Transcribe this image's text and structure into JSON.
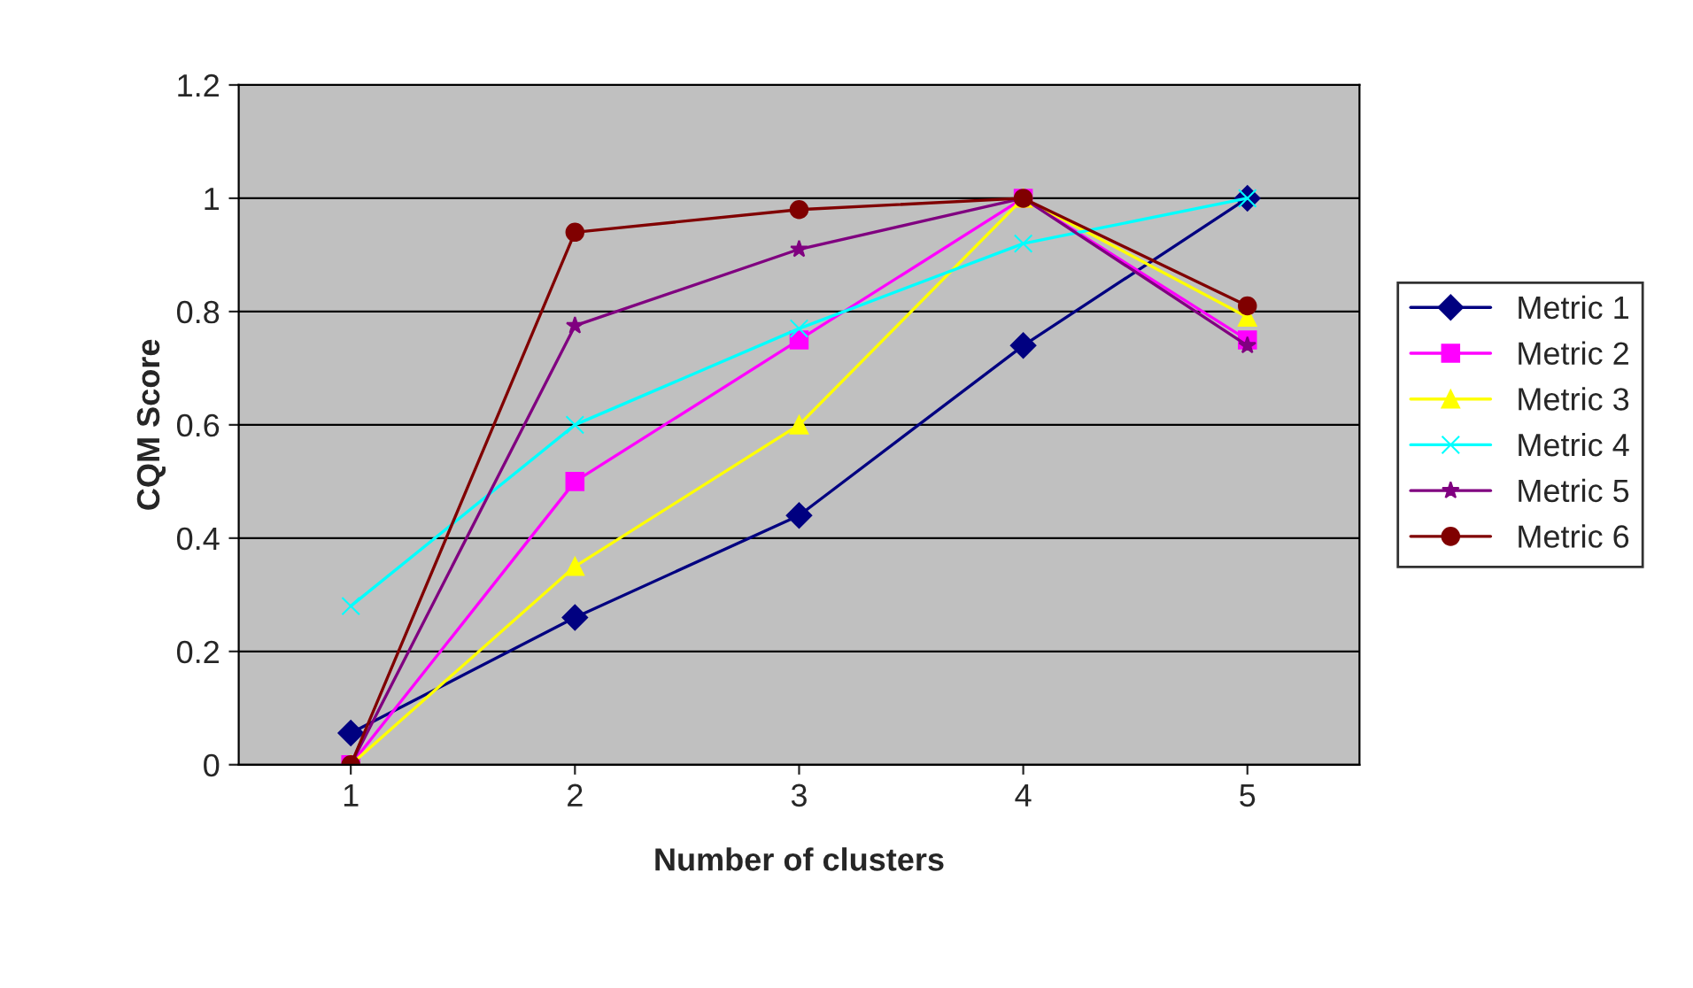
{
  "chart_data": {
    "type": "line",
    "xlabel": "Number of clusters",
    "ylabel": "CQM Score",
    "categories": [
      "1",
      "2",
      "3",
      "4",
      "5"
    ],
    "ylim": [
      0,
      1.2
    ],
    "yticks": [
      0,
      0.2,
      0.4,
      0.6,
      0.8,
      1,
      1.2
    ],
    "grid": "y",
    "legend": "right",
    "line_style": "solid",
    "series": [
      {
        "name": "Metric 1",
        "color": "#000080",
        "marker": "diamond",
        "values": [
          0.056,
          0.26,
          0.44,
          0.74,
          1.0
        ]
      },
      {
        "name": "Metric 2",
        "color": "#ff00ff",
        "marker": "square",
        "values": [
          0,
          0.5,
          0.75,
          1.0,
          0.75
        ]
      },
      {
        "name": "Metric 3",
        "color": "#ffff00",
        "marker": "triangle",
        "values": [
          0,
          0.35,
          0.6,
          1.0,
          0.79
        ]
      },
      {
        "name": "Metric 4",
        "color": "#00ffff",
        "marker": "cross",
        "values": [
          0.28,
          0.6,
          0.77,
          0.92,
          1.0
        ]
      },
      {
        "name": "Metric 5",
        "color": "#800080",
        "marker": "star",
        "values": [
          0,
          0.775,
          0.91,
          1.0,
          0.74
        ]
      },
      {
        "name": "Metric 6",
        "color": "#800000",
        "marker": "circle",
        "values": [
          0,
          0.94,
          0.98,
          1.0,
          0.81
        ]
      }
    ]
  }
}
